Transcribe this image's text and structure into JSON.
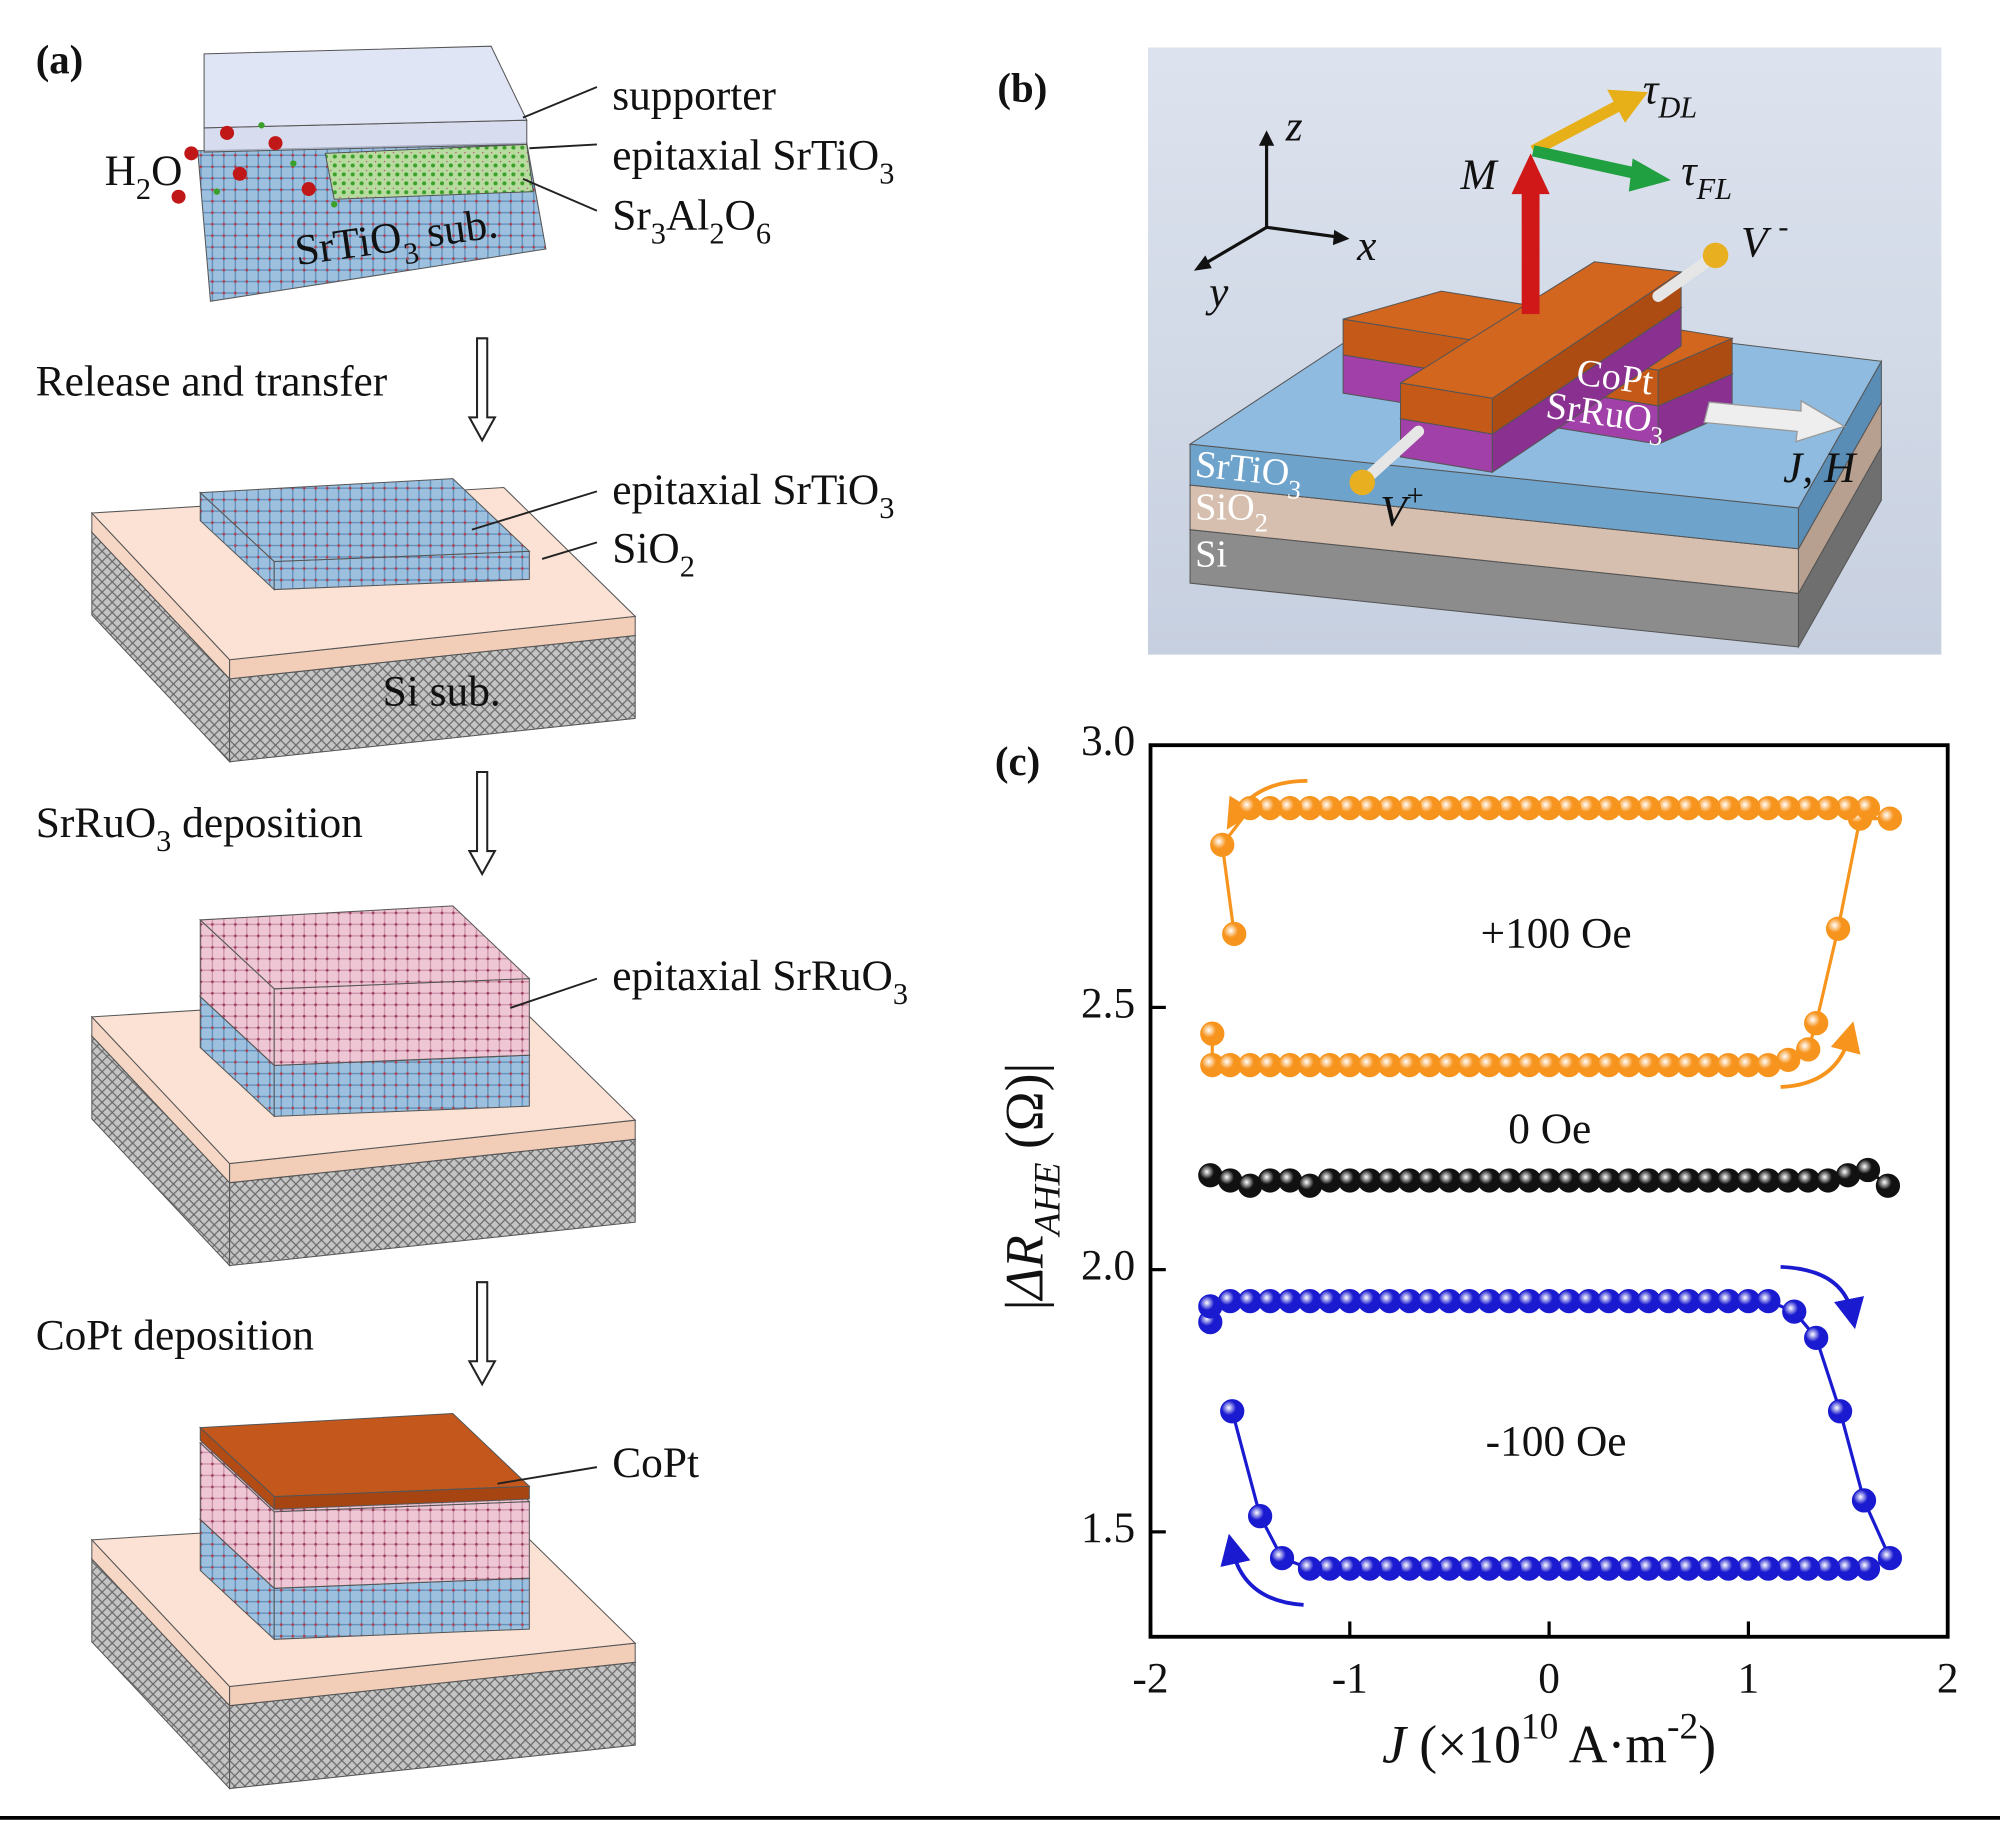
{
  "panel_a": {
    "label": "(a)",
    "step1": {
      "supporter": "supporter",
      "top_layer": "epitaxial SrTiO3",
      "sacrificial": "Sr3Al2O6",
      "water": "H2O",
      "substrate": "SrTiO3 sub."
    },
    "arrow1": "Release and transfer",
    "step2": {
      "film": "epitaxial SrTiO3",
      "oxide": "SiO2",
      "substrate": "Si sub."
    },
    "arrow2": "SrRuO3 deposition",
    "step3": {
      "film": "epitaxial SrRuO3"
    },
    "arrow3": "CoPt deposition",
    "step4": {
      "film": "CoPt"
    }
  },
  "panel_b": {
    "label": "(b)",
    "axes": {
      "z": "z",
      "x": "x",
      "y": "y"
    },
    "magnetization": "M",
    "tau_dl": "τDL",
    "tau_fl": "τFL",
    "v_minus": "V -",
    "v_plus": "V+",
    "layers": [
      "CoPt",
      "SrRuO3",
      "SrTiO3",
      "SiO2",
      "Si"
    ],
    "current": "J, H"
  },
  "chart_data": {
    "type": "line",
    "panel_label": "(c)",
    "xlabel": "J (×1010 A·m-2)",
    "ylabel": "|ΔRAHE (Ω)|",
    "xlim": [
      -2,
      2
    ],
    "ylim": [
      1.3,
      3.0
    ],
    "xticks": [
      -2,
      -1,
      0,
      1,
      2
    ],
    "yticks": [
      1.5,
      {
        "value": 2,
        "label": "2.0"
      },
      2.5,
      {
        "value": 3,
        "label": "3.0"
      }
    ],
    "annotations": [
      "+100 Oe",
      "0 Oe",
      "-100 Oe"
    ],
    "series": [
      {
        "color": "#f7941d",
        "x": [
          -1.69,
          -1.69,
          -1.6,
          -1.5,
          -1.4,
          -1.3,
          -1.2,
          -1.1,
          -1,
          -0.9,
          -0.8,
          -0.7,
          -0.6,
          -0.5,
          -0.4,
          -0.3,
          -0.2,
          -0.1,
          0,
          0.1,
          0.2,
          0.3,
          0.4,
          0.5,
          0.6,
          0.7,
          0.8,
          0.9,
          1,
          1.1,
          1.2,
          1.3,
          1.34,
          1.45,
          1.56,
          1.71,
          1.6,
          1.5,
          1.4,
          1.3,
          1.2,
          1.1,
          1,
          0.9,
          0.8,
          0.7,
          0.6,
          0.5,
          0.4,
          0.3,
          0.2,
          0.1,
          0,
          -0.1,
          -0.2,
          -0.3,
          -0.4,
          -0.5,
          -0.6,
          -0.7,
          -0.8,
          -0.9,
          -1,
          -1.1,
          -1.2,
          -1.3,
          -1.4,
          -1.5,
          -1.64,
          -1.58
        ],
        "values": [
          2.45,
          2.39,
          2.39,
          2.39,
          2.39,
          2.39,
          2.39,
          2.39,
          2.39,
          2.39,
          2.39,
          2.39,
          2.39,
          2.39,
          2.39,
          2.39,
          2.39,
          2.39,
          2.39,
          2.39,
          2.39,
          2.39,
          2.39,
          2.39,
          2.39,
          2.39,
          2.39,
          2.39,
          2.39,
          2.39,
          2.4,
          2.42,
          2.47,
          2.65,
          2.86,
          2.86,
          2.88,
          2.88,
          2.88,
          2.88,
          2.88,
          2.88,
          2.88,
          2.88,
          2.88,
          2.88,
          2.88,
          2.88,
          2.88,
          2.88,
          2.88,
          2.88,
          2.88,
          2.88,
          2.88,
          2.88,
          2.88,
          2.88,
          2.88,
          2.88,
          2.88,
          2.88,
          2.88,
          2.88,
          2.88,
          2.88,
          2.88,
          2.88,
          2.81,
          2.64
        ]
      },
      {
        "color": "#111111",
        "x": [
          -1.7,
          -1.6,
          -1.5,
          -1.4,
          -1.3,
          -1.2,
          -1.1,
          -1,
          -0.9,
          -0.8,
          -0.7,
          -0.6,
          -0.5,
          -0.4,
          -0.3,
          -0.2,
          -0.1,
          0,
          0.1,
          0.2,
          0.3,
          0.4,
          0.5,
          0.6,
          0.7,
          0.8,
          0.9,
          1,
          1.1,
          1.2,
          1.3,
          1.4,
          1.5,
          1.6,
          1.7
        ],
        "values": [
          2.18,
          2.17,
          2.16,
          2.17,
          2.17,
          2.16,
          2.17,
          2.17,
          2.17,
          2.17,
          2.17,
          2.17,
          2.17,
          2.17,
          2.17,
          2.17,
          2.17,
          2.17,
          2.17,
          2.17,
          2.17,
          2.17,
          2.17,
          2.17,
          2.17,
          2.17,
          2.17,
          2.17,
          2.17,
          2.17,
          2.17,
          2.17,
          2.18,
          2.19,
          2.16
        ]
      },
      {
        "color": "#1a1ad0",
        "x": [
          -1.7,
          -1.7,
          -1.6,
          -1.5,
          -1.4,
          -1.3,
          -1.2,
          -1.1,
          -1,
          -0.9,
          -0.8,
          -0.7,
          -0.6,
          -0.5,
          -0.4,
          -0.3,
          -0.2,
          -0.1,
          0,
          0.1,
          0.2,
          0.3,
          0.4,
          0.5,
          0.6,
          0.7,
          0.8,
          0.9,
          1,
          1.1,
          1.23,
          1.34,
          1.46,
          1.58,
          1.71,
          1.6,
          1.5,
          1.4,
          1.3,
          1.2,
          1.1,
          1,
          0.9,
          0.8,
          0.7,
          0.6,
          0.5,
          0.4,
          0.3,
          0.2,
          0.1,
          0,
          -0.1,
          -0.2,
          -0.3,
          -0.4,
          -0.5,
          -0.6,
          -0.7,
          -0.8,
          -0.9,
          -1,
          -1.1,
          -1.2,
          -1.34,
          -1.45,
          -1.59
        ],
        "values": [
          1.9,
          1.93,
          1.94,
          1.94,
          1.94,
          1.94,
          1.94,
          1.94,
          1.94,
          1.94,
          1.94,
          1.94,
          1.94,
          1.94,
          1.94,
          1.94,
          1.94,
          1.94,
          1.94,
          1.94,
          1.94,
          1.94,
          1.94,
          1.94,
          1.94,
          1.94,
          1.94,
          1.94,
          1.94,
          1.94,
          1.92,
          1.87,
          1.73,
          1.56,
          1.45,
          1.43,
          1.43,
          1.43,
          1.43,
          1.43,
          1.43,
          1.43,
          1.43,
          1.43,
          1.43,
          1.43,
          1.43,
          1.43,
          1.43,
          1.43,
          1.43,
          1.43,
          1.43,
          1.43,
          1.43,
          1.43,
          1.43,
          1.43,
          1.43,
          1.43,
          1.43,
          1.43,
          1.43,
          1.43,
          1.45,
          1.53,
          1.73
        ]
      }
    ]
  }
}
